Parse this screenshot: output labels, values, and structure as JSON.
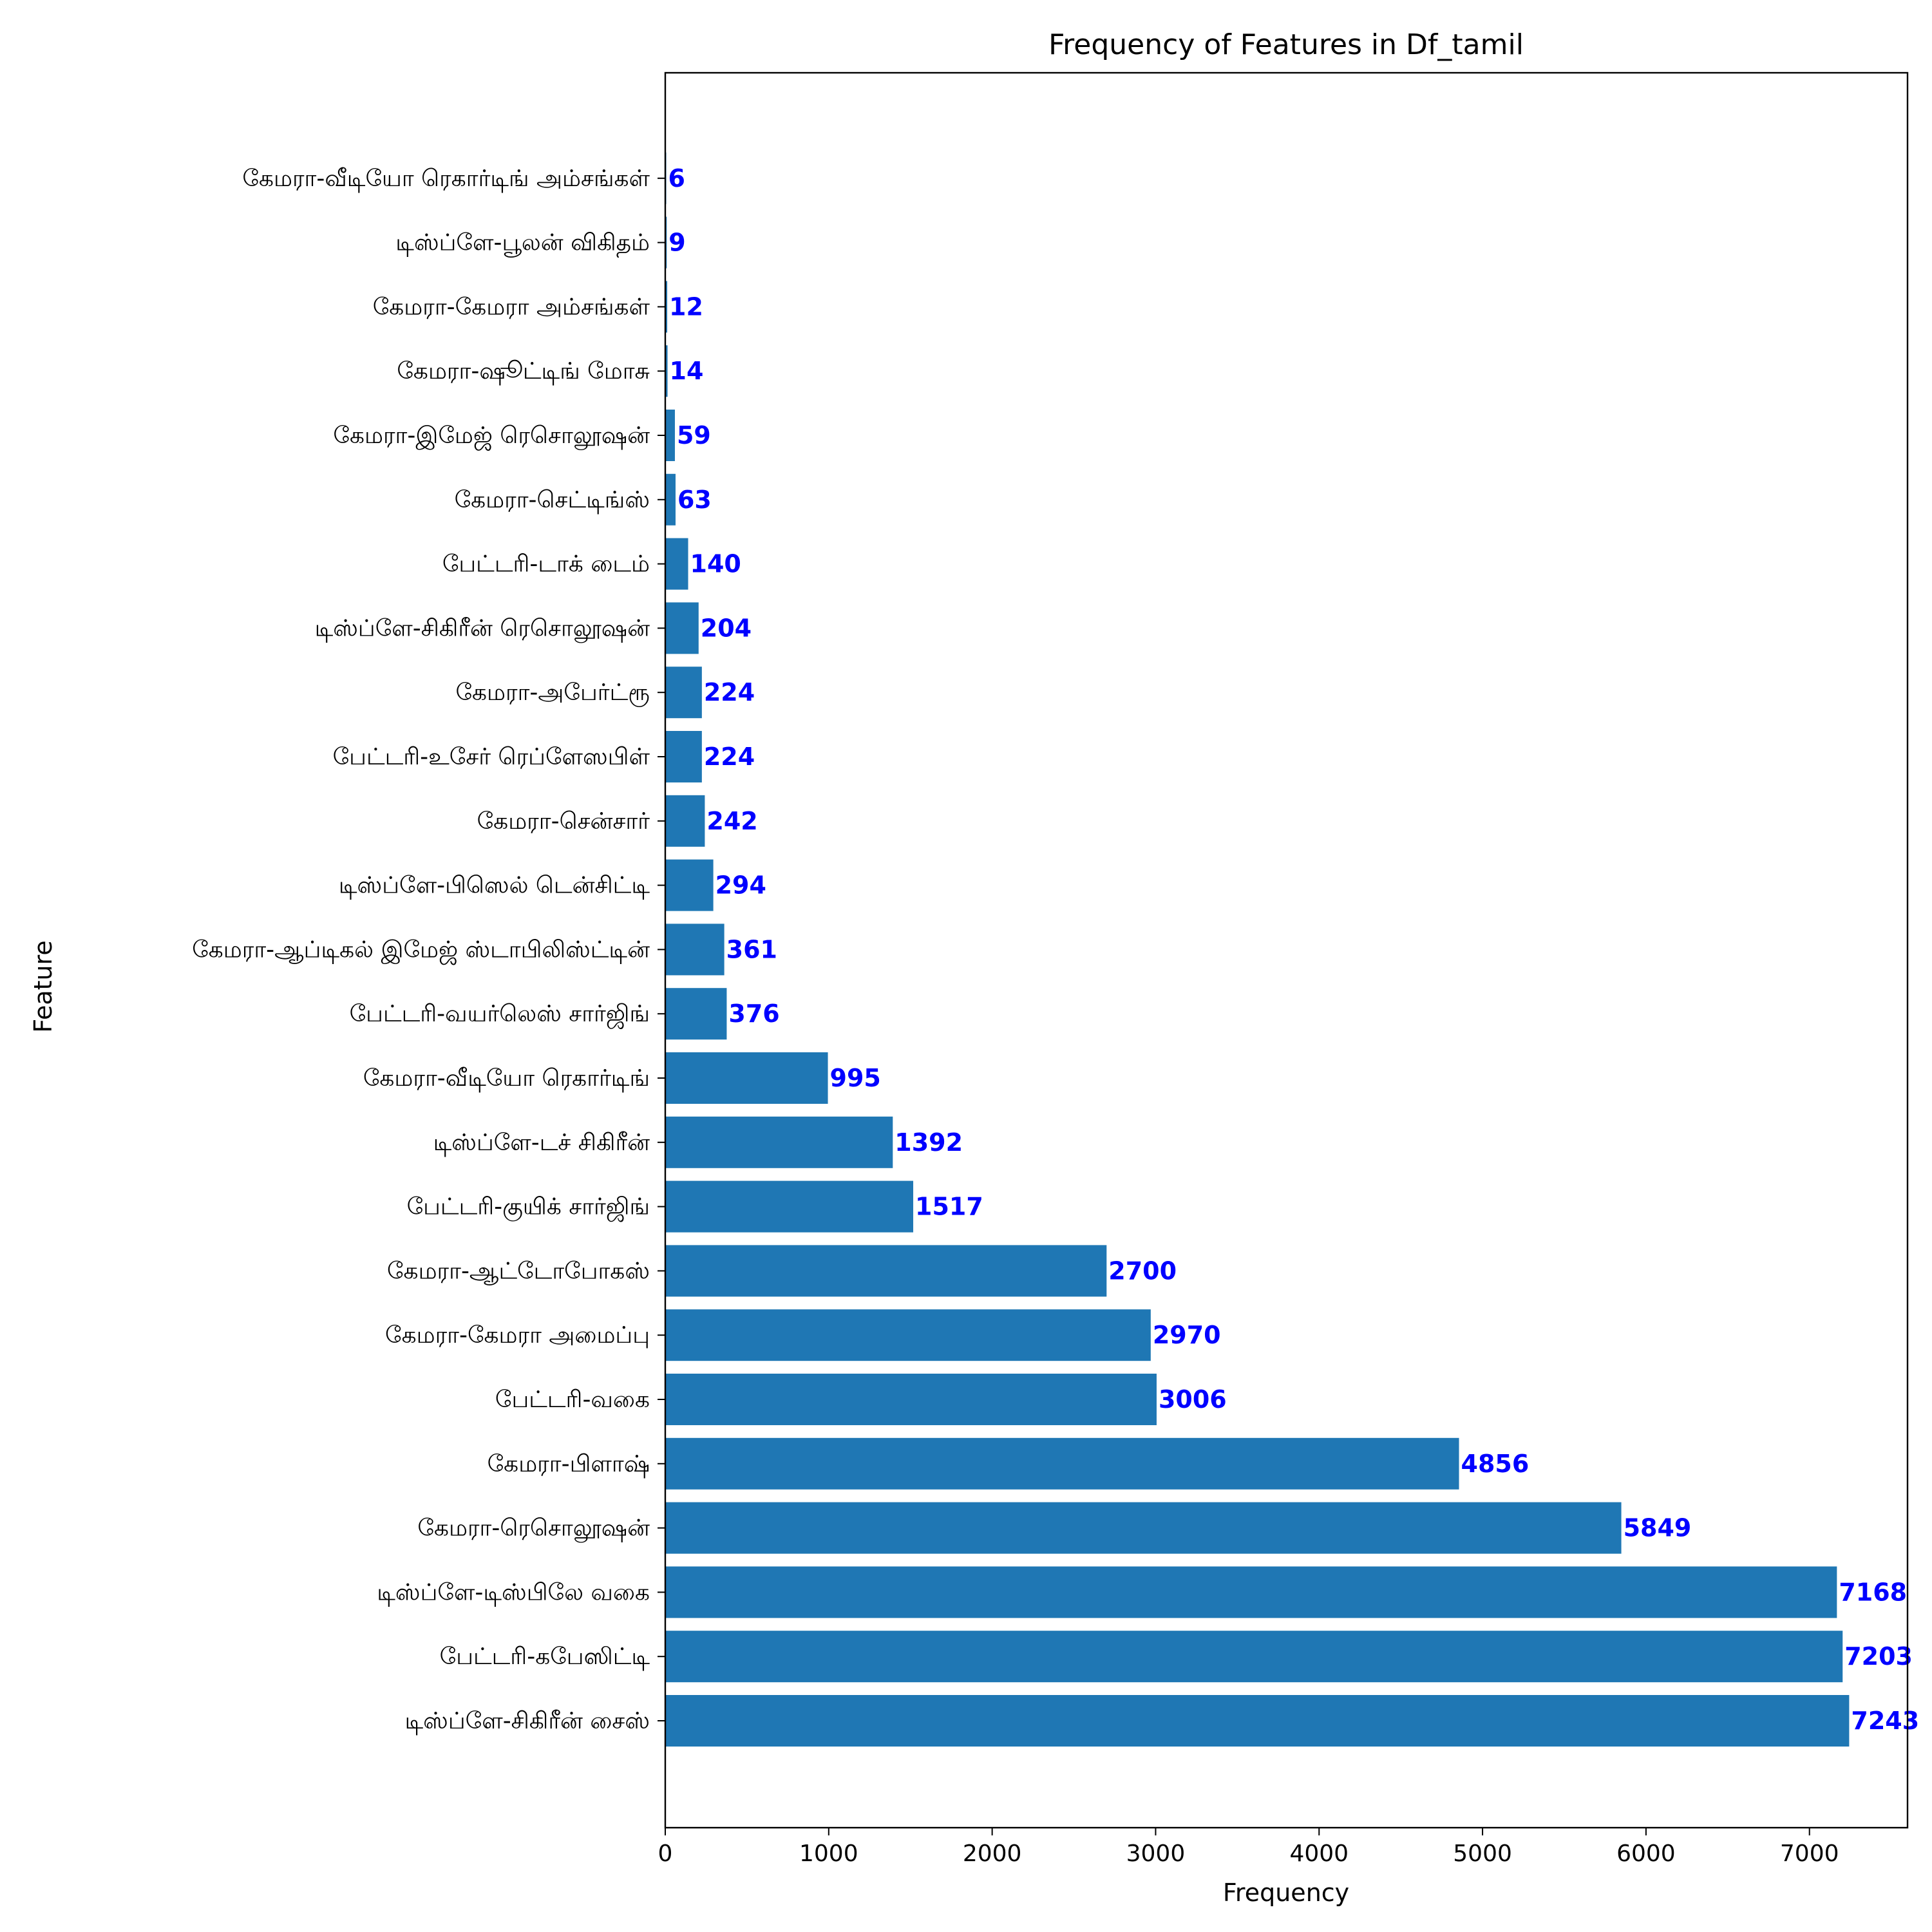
{
  "chart_data": {
    "type": "bar",
    "orientation": "horizontal",
    "title": "Frequency of Features in Df_tamil",
    "xlabel": "Frequency",
    "ylabel": "Feature",
    "xlim": [
      0,
      7600
    ],
    "xticks": [
      0,
      1000,
      2000,
      3000,
      4000,
      5000,
      6000,
      7000
    ],
    "grid": false,
    "bar_color": "#1f77b4",
    "value_label_color": "#0000ff",
    "categories": [
      "டிஸ்ப்ளே-சிகிரீன் சைஸ்",
      "பேட்டரி-கபேஸிட்டி",
      "டிஸ்ப்ளே-டிஸ்பிலே வகை",
      "கேமரா-ரெசொலூஷன்",
      "கேமரா-பிளாஷ்",
      "பேட்டரி-வகை",
      "கேமரா-கேமரா அமைப்பு",
      "கேமரா-ஆட்டோபோகஸ்",
      "பேட்டரி-குயிக் சார்ஜிங்",
      "டிஸ்ப்ளே-டச் சிகிரீன்",
      "கேமரா-வீடியோ ரெகார்டிங்",
      "பேட்டரி-வயர்லெஸ் சார்ஜிங்",
      "கேமரா-ஆப்டிகல் இமேஜ் ஸ்டாபிலிஸ்ட்டின்",
      "டிஸ்ப்ளே-பிஸெல் டென்சிட்டி",
      "கேமரா-சென்சார்",
      "பேட்டரி-உசேர் ரெப்ளேஸபிள்",
      "கேமரா-அபேர்ட்ரூ",
      "டிஸ்ப்ளே-சிகிரீன் ரெசொலூஷன்",
      "பேட்டரி-டாக் டைம்",
      "கேமரா-செட்டிங்ஸ்",
      "கேமரா-இமேஜ் ரெசொலூஷன்",
      "கேமரா-ஷூட்டிங் மோசு",
      "கேமரா-கேமரா அம்சங்கள்",
      "டிஸ்ப்ளே-பூலன் விகிதம்",
      "கேமரா-வீடியோ ரெகார்டிங் அம்சங்கள்"
    ],
    "values": [
      7243,
      7203,
      7168,
      5849,
      4856,
      3006,
      2970,
      2700,
      1517,
      1392,
      995,
      376,
      361,
      294,
      242,
      224,
      224,
      204,
      140,
      63,
      59,
      14,
      12,
      9,
      6
    ]
  }
}
